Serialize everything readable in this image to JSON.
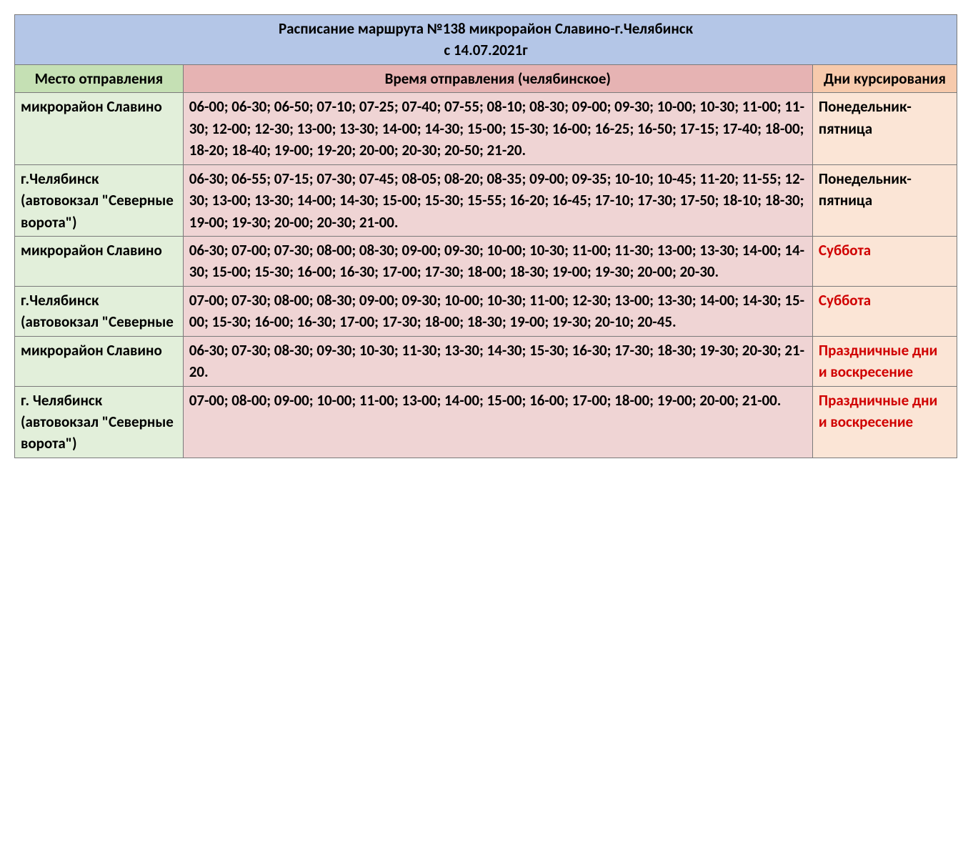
{
  "title_line1": "Расписание маршрута №138 микрорайон Славино-г.Челябинск",
  "title_line2": "с 14.07.2021г",
  "headers": {
    "place": "Место отправления",
    "time": "Время отправления (челябинское)",
    "days": "Дни курсирования"
  },
  "rows": [
    {
      "place": "микрорайон Славино",
      "time": "06-00; 06-30; 06-50; 07-10; 07-25; 07-40; 07-55; 08-10; 08-30; 09-00; 09-30; 10-00; 10-30; 11-00; 11-30; 12-00; 12-30; 13-00; 13-30; 14-00; 14-30; 15-00; 15-30; 16-00; 16-25; 16-50; 17-15; 17-40; 18-00; 18-20; 18-40; 19-00; 19-20; 20-00; 20-30; 20-50; 21-20.",
      "days": "Понедельник-пятница",
      "days_red": false
    },
    {
      "place": "г.Челябинск (автовокзал \"Северные ворота\")",
      "time": "06-30; 06-55; 07-15; 07-30; 07-45; 08-05; 08-20; 08-35; 09-00; 09-35; 10-10; 10-45; 11-20; 11-55; 12-30; 13-00; 13-30; 14-00; 14-30; 15-00; 15-30; 15-55; 16-20; 16-45; 17-10; 17-30; 17-50; 18-10; 18-30; 19-00; 19-30; 20-00; 20-30; 21-00.",
      "days": "Понедельник-пятница",
      "days_red": false
    },
    {
      "place": "микрорайон Славино",
      "time": "06-30; 07-00; 07-30; 08-00; 08-30; 09-00; 09-30; 10-00; 10-30; 11-00; 11-30; 13-00; 13-30; 14-00; 14-30; 15-00; 15-30; 16-00; 16-30; 17-00; 17-30; 18-00; 18-30; 19-00; 19-30; 20-00; 20-30.",
      "days": "Суббота",
      "days_red": true
    },
    {
      "place": "г.Челябинск (автовокзал \"Северные",
      "time": "07-00; 07-30; 08-00; 08-30; 09-00; 09-30; 10-00; 10-30; 11-00; 12-30; 13-00; 13-30; 14-00; 14-30; 15-00; 15-30; 16-00; 16-30; 17-00; 17-30; 18-00; 18-30; 19-00; 19-30; 20-10; 20-45.",
      "days": "Суббота",
      "days_red": true
    },
    {
      "place": "микрорайон Славино",
      "time": "06-30; 07-30; 08-30; 09-30; 10-30; 11-30; 13-30; 14-30; 15-30; 16-30; 17-30; 18-30; 19-30; 20-30; 21-20.",
      "days": "Праздничные дни\nи воскресение",
      "days_red": true
    },
    {
      "place": "г. Челябинск (автовокзал \"Северные ворота\")",
      "time": "07-00; 08-00; 09-00; 10-00; 11-00; 13-00; 14-00; 15-00; 16-00; 17-00; 18-00; 19-00; 20-00; 21-00.",
      "days": "Праздничные дни\nи воскресение",
      "days_red": true
    }
  ],
  "colors": {
    "title_bg": "#b4c6e7",
    "header_place_bg": "#c5e0b4",
    "header_time_bg": "#e6b3b3",
    "header_days_bg": "#f7caac",
    "body_place_bg": "#e2efda",
    "body_time_bg": "#efd4d4",
    "body_days_bg": "#fbe5d6",
    "border": "#7a7a7a",
    "red_text": "#d00000"
  }
}
